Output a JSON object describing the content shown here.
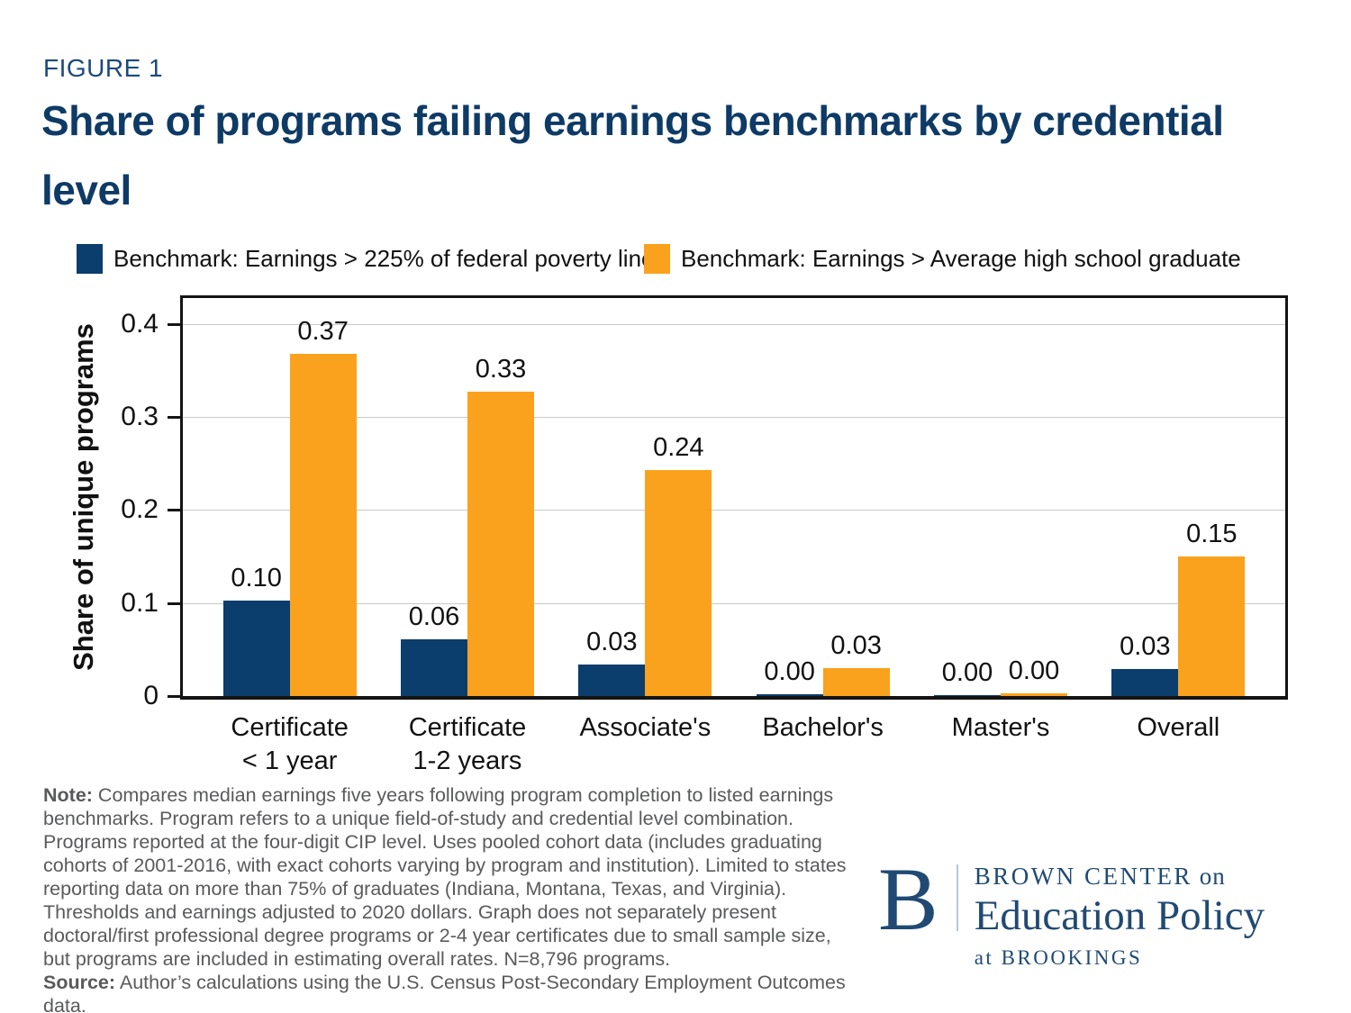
{
  "figure_label": "FIGURE 1",
  "title": "Share of programs failing earnings benchmarks by credential level",
  "legend": [
    {
      "label": "Benchmark: Earnings > 225% of federal poverty line",
      "color": "#0b3d6d"
    },
    {
      "label": "Benchmark: Earnings > Average high school graduate",
      "color": "#faa21d"
    }
  ],
  "chart_data": {
    "type": "bar",
    "title": "Share of programs failing earnings benchmarks by credential level",
    "categories": [
      "Certificate\n< 1 year",
      "Certificate\n1-2 years",
      "Associate's",
      "Bachelor's",
      "Master's",
      "Overall"
    ],
    "series": [
      {
        "name": "Benchmark: Earnings > 225% of federal poverty line",
        "color": "#0b3d6d",
        "values": [
          0.103,
          0.061,
          0.034,
          0.002,
          0.001,
          0.029
        ],
        "labels": [
          "0.10",
          "0.06",
          "0.03",
          "0.00",
          "0.00",
          "0.03"
        ]
      },
      {
        "name": "Benchmark: Earnings > Average high school graduate",
        "color": "#faa21d",
        "values": [
          0.368,
          0.327,
          0.243,
          0.03,
          0.003,
          0.15
        ],
        "labels": [
          "0.37",
          "0.33",
          "0.24",
          "0.03",
          "0.00",
          "0.15"
        ]
      }
    ],
    "xlabel": "",
    "ylabel": "Share of unique programs",
    "ylim": [
      0,
      0.428
    ],
    "yticks": [
      {
        "value": 0.0,
        "label": "0"
      },
      {
        "value": 0.1,
        "label": "0.1"
      },
      {
        "value": 0.2,
        "label": "0.2"
      },
      {
        "value": 0.3,
        "label": "0.3"
      },
      {
        "value": 0.4,
        "label": "0.4"
      }
    ],
    "grid": true,
    "legend_position": "top"
  },
  "note": {
    "note_label": "Note:",
    "note_text": " Compares median earnings five years following program completion to listed earnings benchmarks. Program refers to a unique field-of-study and credential level combination. Programs reported at the four-digit CIP level. Uses pooled cohort data (includes graduating cohorts of 2001-2016, with exact cohorts varying by program and institution). Limited to states reporting data on more than 75% of graduates (Indiana, Montana, Texas, and Virginia). Thresholds and earnings adjusted to 2020 dollars. Graph does not separately present doctoral/first professional degree programs or 2-4 year certificates due to small sample size, but programs are included in estimating overall rates. N=8,796 programs.",
    "source_label": "Source:",
    "source_text": " Author’s calculations using the U.S. Census Post-Secondary Employment Outcomes data."
  },
  "logo": {
    "b": "B",
    "line1_caps": "BROWN CENTER",
    "line1_small": " on",
    "line2": "Education Policy",
    "line3_small": "at ",
    "line3_caps": "BROOKINGS",
    "color": "#204a73"
  }
}
